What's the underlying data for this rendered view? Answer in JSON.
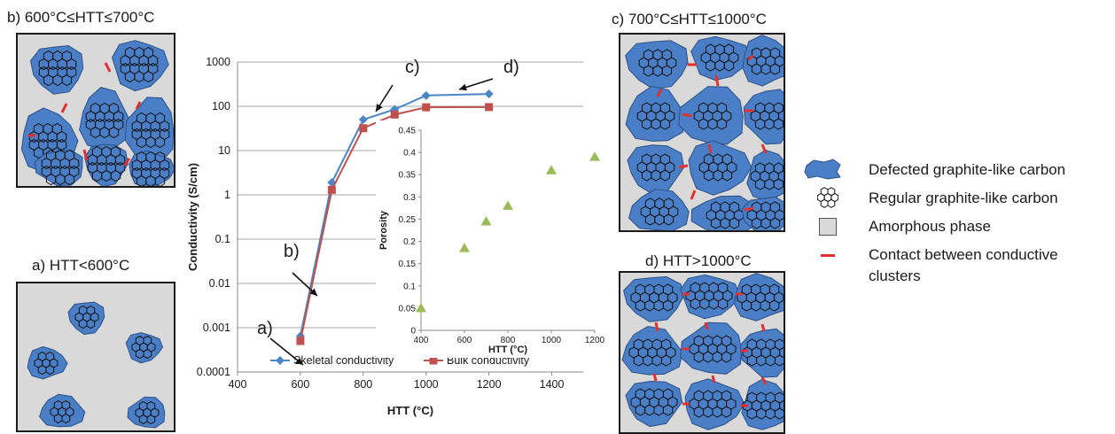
{
  "panels": {
    "a": {
      "title": "a) HTT<600°C"
    },
    "b": {
      "title": "b) 600°C≤HTT≤700°C"
    },
    "c": {
      "title": "c) 700°C≤HTT≤1000°C"
    },
    "d": {
      "title": "d) HTT>1000°C"
    }
  },
  "legend": {
    "defected": "Defected graphite-like carbon",
    "regular": "Regular graphite-like carbon",
    "amorphous": "Amorphous phase",
    "contact_line1": "Contact between conductive",
    "contact_line2": "clusters"
  },
  "colors": {
    "cluster_fill": "#4a7fc8",
    "cluster_stroke": "#2a4f86",
    "amorphous": "#d9d9d9",
    "contact": "#e03030",
    "skeletal": "#4a86c8",
    "bulk": "#c0504d",
    "porosity": "#9bbb59"
  },
  "chart_data": [
    {
      "type": "line",
      "xlabel": "HTT (°C)",
      "ylabel": "Conductivity (S/cm)",
      "xlim": [
        400,
        1500
      ],
      "xticks": [
        "400",
        "600",
        "800",
        "1000",
        "1200",
        "1400"
      ],
      "ylim": [
        0.0001,
        1000
      ],
      "yscale": "log",
      "yticks": [
        "0.0001",
        "0.001",
        "0.01",
        "0.1",
        "1",
        "10",
        "100",
        "1000"
      ],
      "grid": "horizontal",
      "legend_position": "bottom",
      "series": [
        {
          "name": "Skeletal conductivity",
          "marker": "diamond",
          "x": [
            600,
            700,
            800,
            900,
            1000,
            1200
          ],
          "y": [
            0.00065,
            1.9,
            50,
            85,
            175,
            190
          ]
        },
        {
          "name": "Bulk conductivity",
          "marker": "square",
          "x": [
            600,
            700,
            800,
            900,
            1000,
            1200
          ],
          "y": [
            0.0005,
            1.3,
            32,
            65,
            95,
            96
          ]
        }
      ],
      "annotations": [
        {
          "label": "a)",
          "x": 600,
          "y": 0.0005
        },
        {
          "label": "b)",
          "x": 640,
          "y": 0.02
        },
        {
          "label": "c)",
          "x": 800,
          "y": 60
        },
        {
          "label": "d)",
          "x": 1000,
          "y": 190
        }
      ]
    },
    {
      "type": "scatter",
      "inset": true,
      "xlabel": "HTT (°C)",
      "ylabel": "Porosity",
      "xlim": [
        400,
        1200
      ],
      "xticks": [
        "400",
        "600",
        "800",
        "1000",
        "1200"
      ],
      "ylim": [
        0,
        0.45
      ],
      "yticks": [
        "0",
        "0.05",
        "0.1",
        "0.15",
        "0.2",
        "0.25",
        "0.3",
        "0.35",
        "0.4",
        "0.45"
      ],
      "marker": "triangle",
      "x": [
        400,
        600,
        700,
        800,
        1000,
        1200
      ],
      "y": [
        0.05,
        0.185,
        0.245,
        0.28,
        0.36,
        0.39
      ]
    }
  ]
}
